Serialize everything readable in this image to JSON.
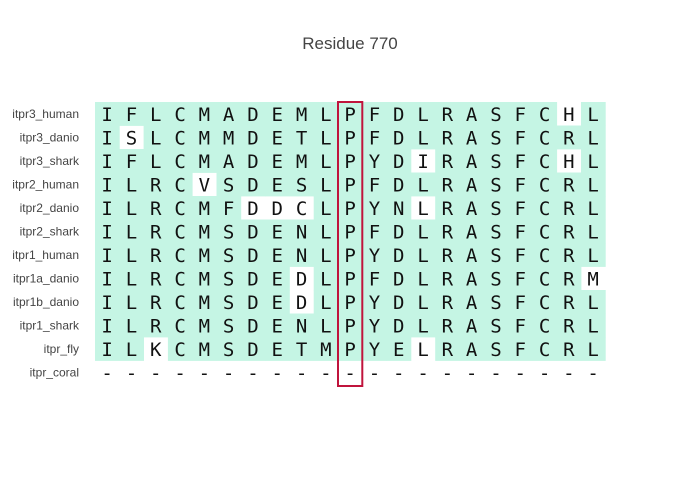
{
  "title": "Residue 770",
  "highlight_color": "#c5f5e4",
  "marker_color": "#c0143c",
  "highlight_column": 10,
  "rows": [
    {
      "name": "itpr3_human",
      "seq": "IFLCMADEMLPFDLRASFCHL",
      "hl": "111111111111111111101"
    },
    {
      "name": "itpr3_danio",
      "seq": "ISLCMMDETLPFDLRASFCRL",
      "hl": "101111111111111111111"
    },
    {
      "name": "itpr3_shark",
      "seq": "IFLCMADEMLPYDIRASFCHL",
      "hl": "111111111111101111101"
    },
    {
      "name": "itpr2_human",
      "seq": "ILRCVSDESLPFDLRASFCRL",
      "hl": "111101111111111111111"
    },
    {
      "name": "itpr2_danio",
      "seq": "ILRCMFDDCLPYNLRASFCRL",
      "hl": "111111000111101111111"
    },
    {
      "name": "itpr2_shark",
      "seq": "ILRCMSDENLPFDLRASFCRL",
      "hl": "111111111111111111111"
    },
    {
      "name": "itpr1_human",
      "seq": "ILRCMSDENLPYDLRASFCRL",
      "hl": "111111111111111111111"
    },
    {
      "name": "itpr1a_danio",
      "seq": "ILRCMSDEDLPFDLRASFCRM",
      "hl": "111111110111111111110"
    },
    {
      "name": "itpr1b_danio",
      "seq": "ILRCMSDEDLPYDLRASFCRL",
      "hl": "111111110111111111111"
    },
    {
      "name": "itpr1_shark",
      "seq": "ILRCMSDENLPYDLRASFCRL",
      "hl": "111111111111111111111"
    },
    {
      "name": "itpr_fly",
      "seq": "ILKCMSDETMPYELRASFCRL",
      "hl": "110111111111101111111"
    },
    {
      "name": "itpr_coral",
      "seq": "---------------------",
      "hl": "000000000000000000000"
    }
  ]
}
